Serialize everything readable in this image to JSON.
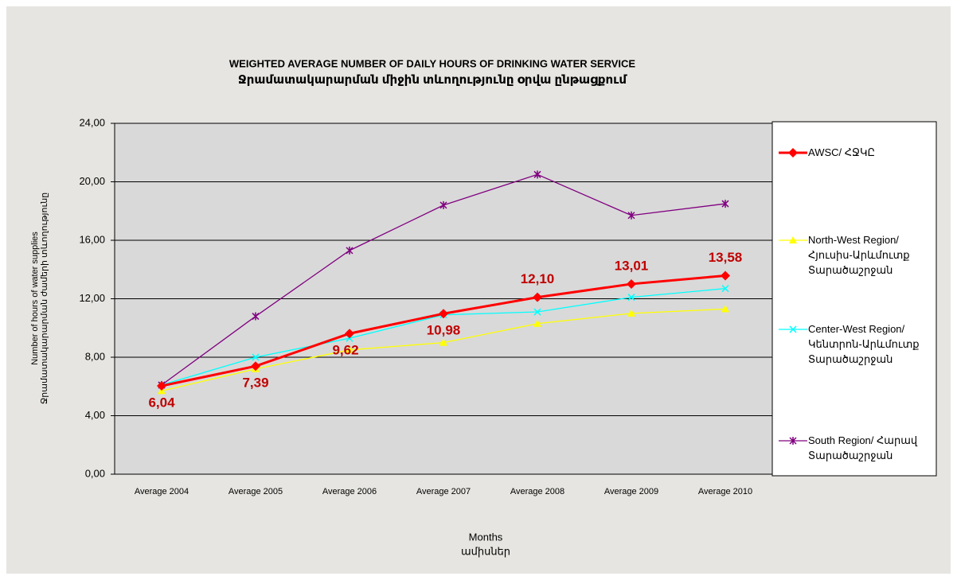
{
  "chart_data": {
    "type": "line",
    "title": "WEIGHTED AVERAGE NUMBER OF DAILY HOURS OF DRINKING WATER SERVICE",
    "subtitle": "Ջրամատակարարման միջին տևողությունը օրվա ընթացքում",
    "ylabel": [
      "Number of hours of water supplies",
      "Ջրամատակարարման ժամերի տևողությունը"
    ],
    "xlabel": [
      "Months",
      "ամիսներ"
    ],
    "categories": [
      "Average 2004",
      "Average 2005",
      "Average 2006",
      "Average 2007",
      "Average 2008",
      "Average 2009",
      "Average 2010"
    ],
    "ylim": [
      0,
      24
    ],
    "yticks": [
      {
        "value": 0,
        "label": "0,00"
      },
      {
        "value": 4,
        "label": "4,00"
      },
      {
        "value": 8,
        "label": "8,00"
      },
      {
        "value": 12,
        "label": "12,00"
      },
      {
        "value": 16,
        "label": "16,00"
      },
      {
        "value": 20,
        "label": "20,00"
      },
      {
        "value": 24,
        "label": "24,00"
      }
    ],
    "grid": true,
    "legend": "right",
    "series": [
      {
        "name": "AWSC/ ՀՋԿԸ",
        "color": "#ff0000",
        "marker": "diamond",
        "values": [
          6.04,
          7.39,
          9.62,
          10.98,
          12.1,
          13.01,
          13.58
        ],
        "value_labels": [
          "6,04",
          "7,39",
          "9,62",
          "10,98",
          "12,10",
          "13,01",
          "13,58"
        ]
      },
      {
        "name": "North-West Region/ Հյուսիս-Արևմուտք Տարածաշրջան",
        "color": "#ffff00",
        "marker": "triangle",
        "values": [
          5.7,
          7.2,
          8.5,
          9.0,
          10.3,
          11.0,
          11.3
        ]
      },
      {
        "name": "Center-West Region/ Կենտրոն-Արևմուտք Տարածաշրջան",
        "color": "#00ffff",
        "marker": "x",
        "values": [
          6.1,
          8.0,
          9.3,
          10.9,
          11.1,
          12.1,
          12.7
        ]
      },
      {
        "name": "South Region/ Հարավ Տարածաշրջան",
        "color": "#800080",
        "marker": "star",
        "values": [
          6.1,
          10.8,
          15.3,
          18.4,
          20.5,
          17.7,
          18.5
        ]
      }
    ]
  }
}
